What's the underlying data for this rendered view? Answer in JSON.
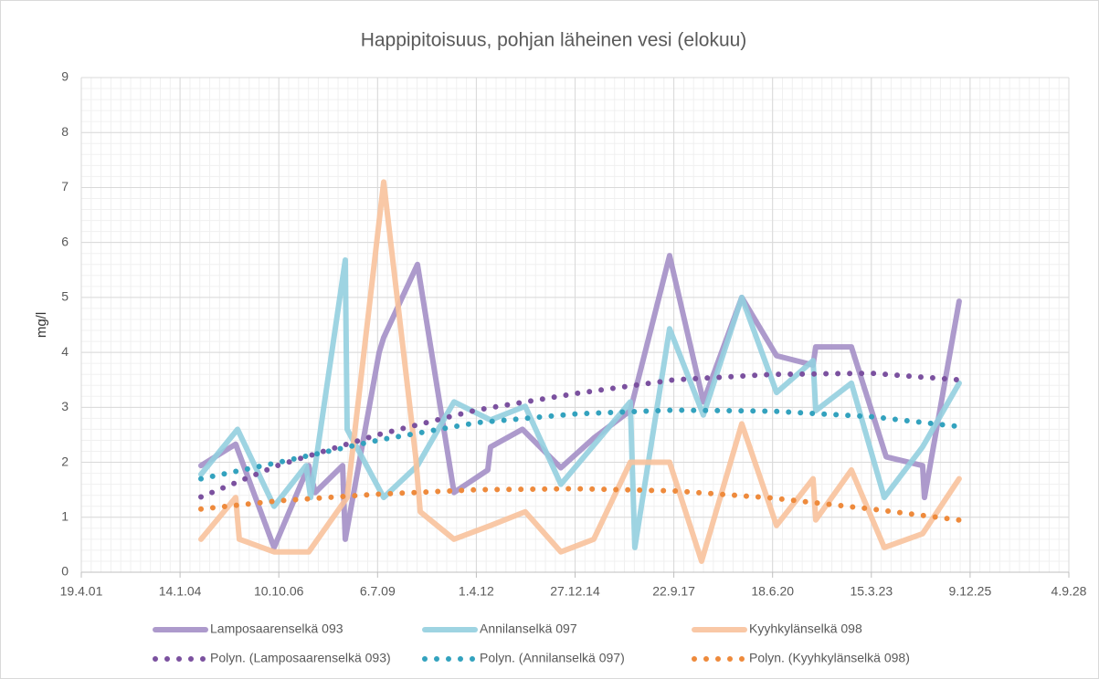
{
  "chart_data": {
    "type": "line",
    "title": "Happipitoisuus, pohjan läheinen vesi (elokuu)",
    "y_label": "mg/l",
    "xlim": [
      37000,
      47000
    ],
    "xticks": [
      {
        "value": 37000,
        "label": "19.4.01"
      },
      {
        "value": 38000,
        "label": "14.1.04"
      },
      {
        "value": 39000,
        "label": "10.10.06"
      },
      {
        "value": 40000,
        "label": "6.7.09"
      },
      {
        "value": 41000,
        "label": "1.4.12"
      },
      {
        "value": 42000,
        "label": "27.12.14"
      },
      {
        "value": 43000,
        "label": "22.9.17"
      },
      {
        "value": 44000,
        "label": "18.6.20"
      },
      {
        "value": 45000,
        "label": "15.3.23"
      },
      {
        "value": 46000,
        "label": "9.12.25"
      },
      {
        "value": 47000,
        "label": "4.9.28"
      }
    ],
    "ylim": [
      0,
      9
    ],
    "yticks": [
      0,
      1,
      2,
      3,
      4,
      5,
      6,
      7,
      8,
      9
    ],
    "grid": true,
    "minor_grid": true,
    "legend": "bottom",
    "series": [
      {
        "name": "Lamposaarenselkä 093",
        "color": "#a48fc6",
        "style": "solid",
        "x": [
          38212,
          38563,
          38952,
          39303,
          39368,
          39646,
          39673,
          40016,
          40062,
          40404,
          40774,
          41116,
          41144,
          41467,
          41856,
          42189,
          42559,
          42957,
          43299,
          43688,
          44040,
          44410,
          44437,
          44798,
          45150,
          45519,
          45538,
          45889
        ],
        "values": [
          1.94,
          2.33,
          0.45,
          1.94,
          1.45,
          1.94,
          0.6,
          4.0,
          4.27,
          5.6,
          1.45,
          1.86,
          2.28,
          2.6,
          1.9,
          2.44,
          2.94,
          5.76,
          3.1,
          5.0,
          3.94,
          3.77,
          4.1,
          4.1,
          2.1,
          1.94,
          1.36,
          4.93
        ]
      },
      {
        "name": "Annilanselkä 097",
        "color": "#93cfdf",
        "style": "solid",
        "x": [
          38212,
          38582,
          38952,
          39276,
          39322,
          39673,
          39692,
          40062,
          40404,
          40774,
          41144,
          41495,
          41856,
          42559,
          42605,
          42957,
          43299,
          43688,
          44040,
          44410,
          44437,
          44798,
          45131,
          45519,
          45889
        ],
        "values": [
          1.78,
          2.6,
          1.2,
          1.94,
          1.36,
          5.68,
          2.6,
          1.36,
          1.94,
          3.1,
          2.77,
          3.02,
          1.6,
          3.1,
          0.45,
          4.43,
          2.86,
          5.0,
          3.27,
          3.85,
          2.94,
          3.44,
          1.36,
          2.28,
          3.44
        ]
      },
      {
        "name": "Kyyhkylänselkä 098",
        "color": "#f8c29c",
        "style": "solid",
        "x": [
          38212,
          38563,
          38600,
          38952,
          39303,
          39692,
          40062,
          40386,
          40432,
          40774,
          41144,
          41495,
          41856,
          42189,
          42559,
          42957,
          43281,
          43688,
          44040,
          44410,
          44437,
          44798,
          45131,
          45519,
          45889
        ],
        "values": [
          0.6,
          1.36,
          0.6,
          0.37,
          0.37,
          1.36,
          7.1,
          2.1,
          1.1,
          0.6,
          0.85,
          1.1,
          0.37,
          0.6,
          2.0,
          2.0,
          0.2,
          2.7,
          0.85,
          1.7,
          0.95,
          1.86,
          0.45,
          0.7,
          1.7
        ]
      },
      {
        "name": "Polyn. (Lamposaarenselkä 093)",
        "color": "#7b519f",
        "style": "dotted",
        "x": [
          38212,
          39000,
          40000,
          41000,
          42000,
          43000,
          44000,
          45000,
          45889
        ],
        "values": [
          1.37,
          1.95,
          2.5,
          2.95,
          3.25,
          3.5,
          3.6,
          3.62,
          3.5
        ]
      },
      {
        "name": "Polyn. (Annilanselkä 097)",
        "color": "#33a2be",
        "style": "dotted",
        "x": [
          38212,
          39000,
          40000,
          41000,
          42000,
          43000,
          44000,
          45000,
          45889
        ],
        "values": [
          1.7,
          2.0,
          2.4,
          2.72,
          2.88,
          2.95,
          2.93,
          2.83,
          2.65
        ]
      },
      {
        "name": "Polyn. (Kyyhkylänselkä 098)",
        "color": "#ee8a3c",
        "style": "dotted",
        "x": [
          38212,
          39000,
          40000,
          41000,
          42000,
          43000,
          44000,
          45000,
          45889
        ],
        "values": [
          1.15,
          1.3,
          1.42,
          1.5,
          1.52,
          1.48,
          1.35,
          1.15,
          0.95
        ]
      }
    ]
  }
}
